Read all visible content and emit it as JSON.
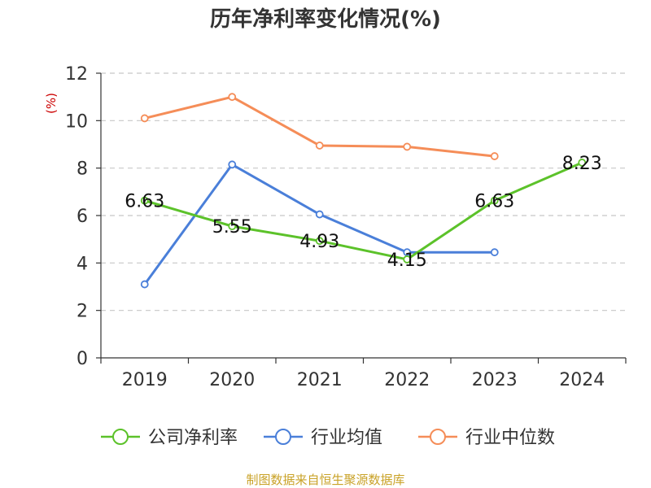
{
  "chart_data": {
    "type": "line",
    "title": "历年净利率变化情况(%)",
    "unit_label": "(%)",
    "categories": [
      "2019",
      "2020",
      "2021",
      "2022",
      "2023",
      "2024"
    ],
    "ylim": [
      0,
      12
    ],
    "yticks": [
      0,
      2,
      4,
      6,
      8,
      10,
      12
    ],
    "grid": true,
    "legend_position": "bottom",
    "series": [
      {
        "name": "公司净利率",
        "color": "#5cc22a",
        "values": [
          6.63,
          5.55,
          4.93,
          4.15,
          6.63,
          8.23
        ],
        "labels": [
          "6.63",
          "5.55",
          "4.93",
          "4.15",
          "6.63",
          "8.23"
        ]
      },
      {
        "name": "行业均值",
        "color": "#4a7fd9",
        "values": [
          3.1,
          8.15,
          6.05,
          4.45,
          4.45,
          null
        ]
      },
      {
        "name": "行业中位数",
        "color": "#f58d58",
        "values": [
          10.1,
          11.0,
          8.95,
          8.9,
          8.5,
          null
        ]
      }
    ]
  },
  "source": "制图数据来自恒生聚源数据库"
}
